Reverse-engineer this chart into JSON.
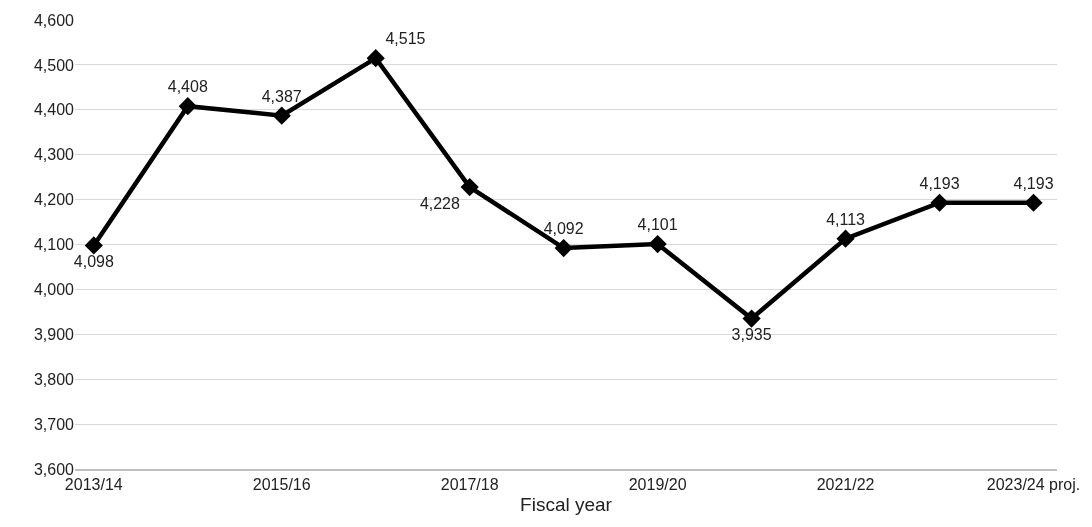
{
  "chart_data": {
    "type": "line",
    "xlabel": "Fiscal year",
    "categories": [
      "2013/14",
      null,
      "2015/16",
      null,
      "2017/18",
      null,
      "2019/20",
      null,
      "2021/22",
      null,
      "2023/24 proj."
    ],
    "series": [
      {
        "color": "#000000",
        "values": [
          4098,
          4408,
          4387,
          4515,
          4228,
          4092,
          4101,
          3935,
          4113,
          4193,
          4193
        ],
        "value_labels": [
          "4,098",
          "4,408",
          "4,387",
          "4,515",
          "4,228",
          "4,092",
          "4,101",
          "3,935",
          "4,113",
          "4,193",
          "4,193"
        ]
      }
    ],
    "ylim": [
      3600,
      4600
    ],
    "yticks": [
      {
        "value": 3600,
        "label": "3,600"
      },
      {
        "value": 3700,
        "label": "3,700"
      },
      {
        "value": 3800,
        "label": "3,800"
      },
      {
        "value": 3900,
        "label": "3,900"
      },
      {
        "value": 4000,
        "label": "4,000"
      },
      {
        "value": 4100,
        "label": "4,100"
      },
      {
        "value": 4200,
        "label": "4,200"
      },
      {
        "value": 4300,
        "label": "4,300"
      },
      {
        "value": 4400,
        "label": "4,400"
      },
      {
        "value": 4500,
        "label": "4,500"
      },
      {
        "value": 4600,
        "label": "4,600"
      }
    ],
    "grid": "y",
    "marker": "diamond",
    "line_style": "solid"
  }
}
